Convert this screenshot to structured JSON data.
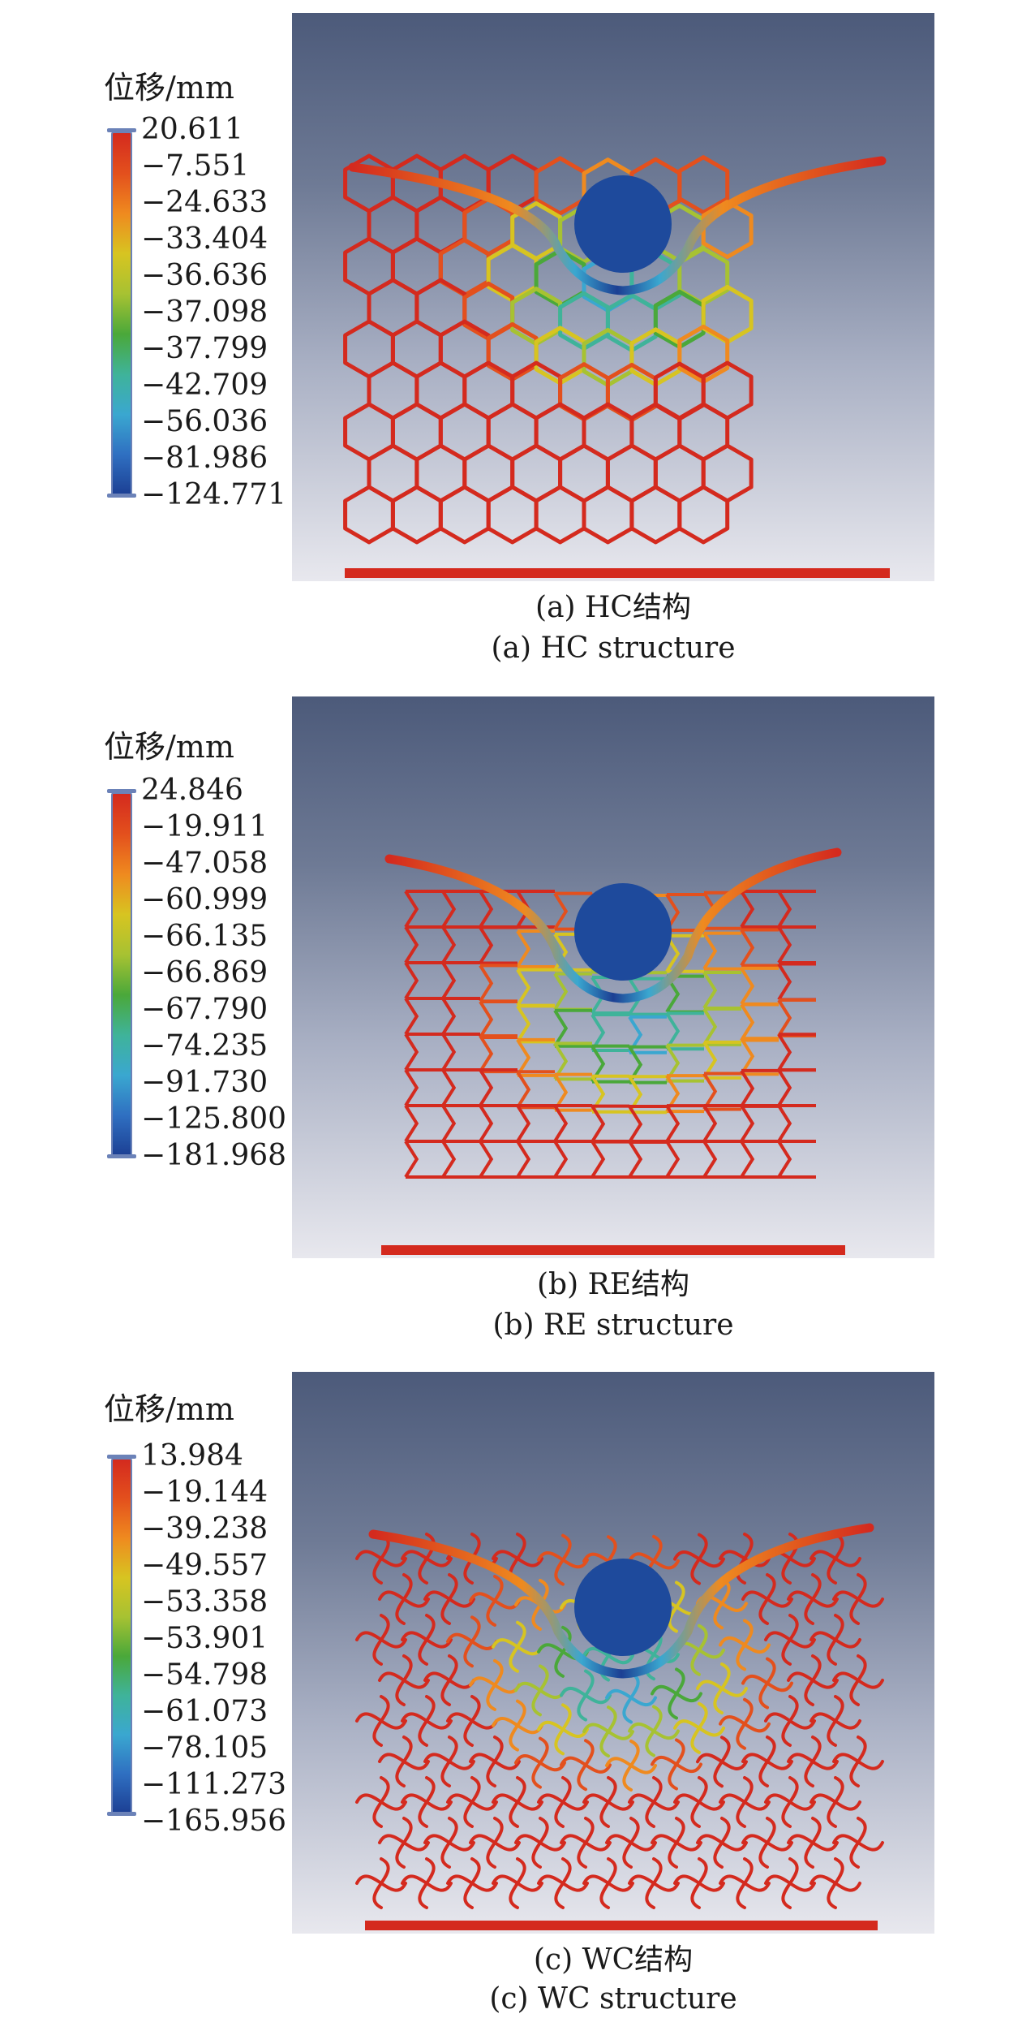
{
  "figure": {
    "colormap": [
      "#d42a1e",
      "#e3501d",
      "#ef8a1f",
      "#d7c421",
      "#a7c232",
      "#4aa83a",
      "#3fb39a",
      "#3aa7d0",
      "#2f6fc1",
      "#1c3f93"
    ],
    "panels": [
      {
        "legend_title": "位移/mm",
        "ticks": [
          "20.611",
          "−7.551",
          "−24.633",
          "−33.404",
          "−36.636",
          "−37.098",
          "−37.799",
          "−42.709",
          "−56.036",
          "−81.986",
          "−124.771"
        ],
        "caption_cn": "(a) HC结构",
        "caption_en": "(a) HC structure"
      },
      {
        "legend_title": "位移/mm",
        "ticks": [
          "24.846",
          "−19.911",
          "−47.058",
          "−60.999",
          "−66.135",
          "−66.869",
          "−67.790",
          "−74.235",
          "−91.730",
          "−125.800",
          "−181.968"
        ],
        "caption_cn": "(b) RE结构",
        "caption_en": "(b) RE structure"
      },
      {
        "legend_title": "位移/mm",
        "ticks": [
          "13.984",
          "−19.144",
          "−39.238",
          "−49.557",
          "−53.358",
          "−53.901",
          "−54.798",
          "−61.073",
          "−78.105",
          "−111.273",
          "−165.956"
        ],
        "caption_cn": "(c) WC结构",
        "caption_en": "(c) WC structure"
      }
    ]
  }
}
